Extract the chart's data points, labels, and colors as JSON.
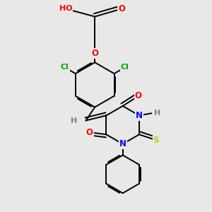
{
  "background_color": "#e8e8e8",
  "bond_color": "#000000",
  "atom_colors": {
    "O": "#ff0000",
    "N": "#0000ff",
    "S": "#cccc00",
    "Cl": "#00aa00",
    "C": "#000000",
    "H": "#808080"
  },
  "figsize": [
    3.0,
    3.0
  ],
  "dpi": 100
}
